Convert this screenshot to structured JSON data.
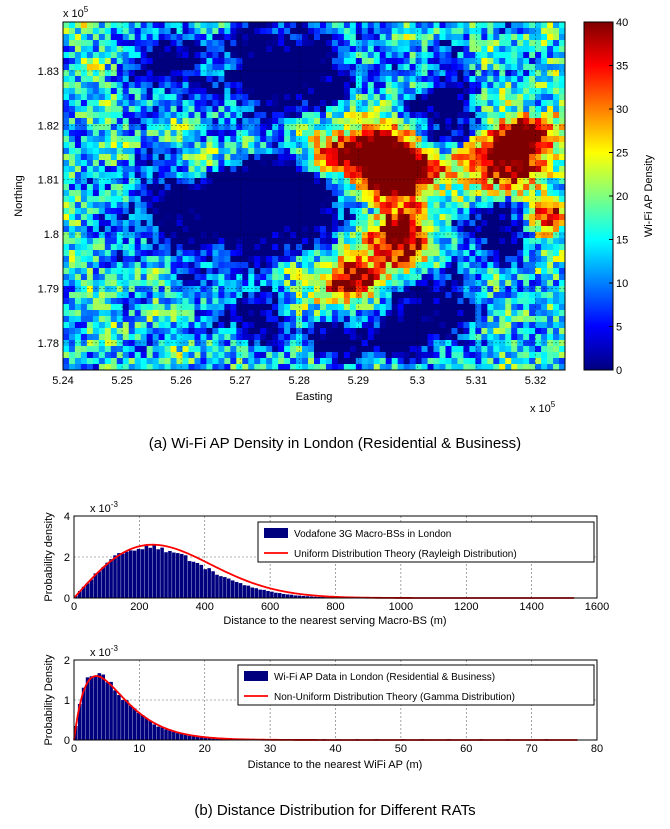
{
  "captions": {
    "a": "(a) Wi-Fi AP Density in London (Residential & Business)",
    "b": "(b) Distance Distribution for Different RATs"
  },
  "colors": {
    "bar": "#00007f",
    "curve": "#ff0000",
    "jet": [
      "#00007f",
      "#0000ff",
      "#007fff",
      "#00ffff",
      "#7fff7f",
      "#ffff00",
      "#ff7f00",
      "#ff0000",
      "#7f0000"
    ]
  },
  "chart_data": [
    {
      "id": "heatmap",
      "type": "heatmap",
      "xlabel": "Easting",
      "ylabel": "Northing",
      "x_exponent_label": "x 10",
      "x_exponent": "5",
      "y_exponent_label": "x 10",
      "y_exponent": "5",
      "xlim": [
        5.24,
        5.325
      ],
      "ylim": [
        1.775,
        1.839
      ],
      "xticks": [
        "5.24",
        "5.25",
        "5.26",
        "5.27",
        "5.28",
        "5.29",
        "5.3",
        "5.31",
        "5.32"
      ],
      "yticks": [
        "1.78",
        "1.79",
        "1.8",
        "1.81",
        "1.82",
        "1.83"
      ],
      "grid": true,
      "colorbar": {
        "label": "Wi-Fi AP Density",
        "range": [
          0,
          40
        ],
        "ticks": [
          "0",
          "5",
          "10",
          "15",
          "20",
          "25",
          "30",
          "35",
          "40"
        ]
      }
    },
    {
      "id": "hist-macro",
      "type": "bar",
      "xlabel": "Distance to the nearest serving Macro-BS (m)",
      "ylabel": "Probability density",
      "y_exponent_label": "x 10",
      "y_exponent": "-3",
      "xlim": [
        0,
        1600
      ],
      "ylim": [
        0,
        4
      ],
      "xticks": [
        "0",
        "200",
        "400",
        "600",
        "800",
        "1000",
        "1200",
        "1400",
        "1600"
      ],
      "yticks": [
        "0",
        "2",
        "4"
      ],
      "grid": true,
      "legend": {
        "placement": "top-right",
        "entries": [
          "Vodafone 3G Macro-BSs in London",
          "Uniform Distribution Theory (Rayleigh Distribution)"
        ]
      },
      "series": [
        {
          "name": "Vodafone 3G Macro-BSs in London",
          "kind": "histogram",
          "bin_width": 12,
          "distribution": "rayleigh",
          "sigma": 225,
          "peak": 2.5,
          "x_max": 900
        },
        {
          "name": "Uniform Distribution Theory (Rayleigh Distribution)",
          "kind": "line",
          "distribution": "rayleigh",
          "sigma": 240,
          "peak": 2.6,
          "x_max": 1530
        }
      ]
    },
    {
      "id": "hist-wifi",
      "type": "bar",
      "xlabel": "Distance to the nearest WiFi AP (m)",
      "ylabel": "Probability Density",
      "y_exponent_label": "x 10",
      "y_exponent": "-3",
      "xlim": [
        0,
        80
      ],
      "ylim": [
        0,
        2
      ],
      "xticks": [
        "0",
        "10",
        "20",
        "30",
        "40",
        "50",
        "60",
        "70",
        "80"
      ],
      "yticks": [
        "0",
        "1",
        "2"
      ],
      "grid": true,
      "legend": {
        "placement": "top-right",
        "entries": [
          "Wi-Fi AP Data in London (Residential & Business)",
          "Non-Uniform Distribution Theory (Gamma Distribution)"
        ]
      },
      "series": [
        {
          "name": "Wi-Fi AP Data in London (Residential & Business)",
          "kind": "histogram",
          "bin_width": 0.6,
          "distribution": "gamma",
          "shape": 2,
          "scale": 3.3,
          "peak": 1.65,
          "x_max": 35,
          "sparse_tail_x": [
            33,
            36,
            38,
            40,
            43,
            46,
            50,
            53,
            57,
            62,
            66,
            72
          ]
        },
        {
          "name": "Non-Uniform Distribution Theory (Gamma Distribution)",
          "kind": "line",
          "distribution": "gamma",
          "shape": 2,
          "scale": 3.4,
          "peak": 1.6,
          "x_max": 77
        }
      ]
    }
  ]
}
